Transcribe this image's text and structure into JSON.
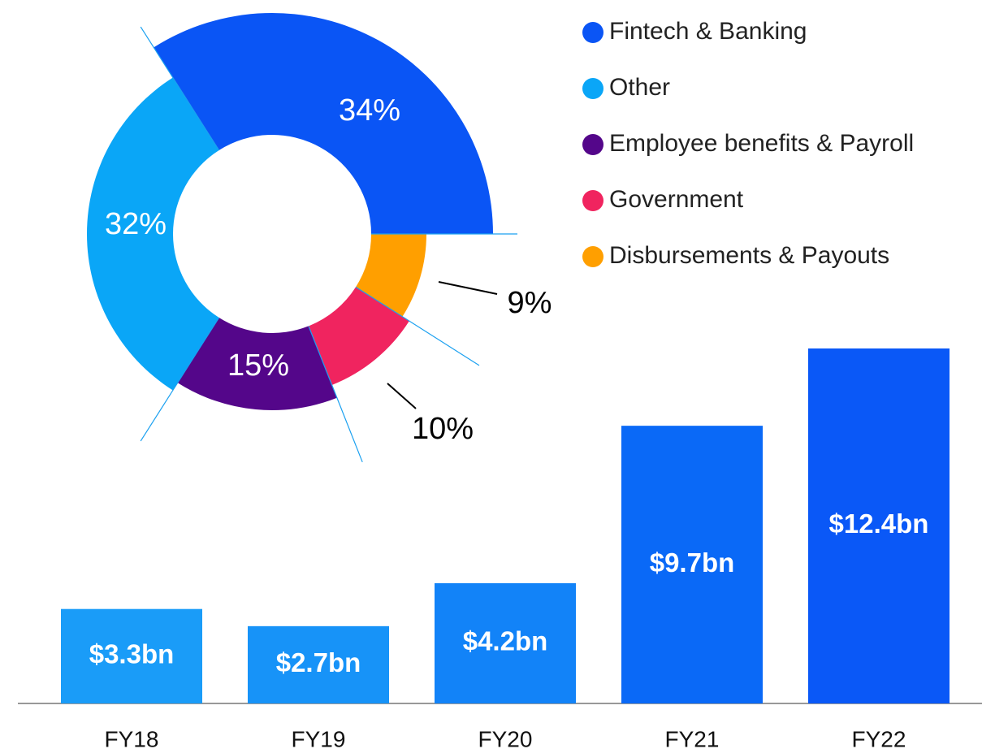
{
  "chart_data": [
    {
      "type": "pie",
      "categories": [
        "Fintech & Banking",
        "Other",
        "Employee benefits & Payroll",
        "Government",
        "Disbursements & Payouts"
      ],
      "values": [
        34,
        32,
        15,
        10,
        9
      ],
      "value_labels": [
        "34%",
        "32%",
        "15%",
        "10%",
        "9%"
      ],
      "colors": [
        "#0a55f5",
        "#0aa6f7",
        "#54068a",
        "#f0245f",
        "#ff9f00"
      ]
    },
    {
      "type": "bar",
      "categories": [
        "FY18",
        "FY19",
        "FY20",
        "FY21",
        "FY22"
      ],
      "values": [
        3.3,
        2.7,
        4.2,
        9.7,
        12.4
      ],
      "value_labels": [
        "$3.3bn",
        "$2.7bn",
        "$4.2bn",
        "$9.7bn",
        "$12.4bn"
      ],
      "colors": [
        "#1a9cf8",
        "#1793f8",
        "#1283f8",
        "#0a69f7",
        "#0a58f7"
      ]
    }
  ]
}
